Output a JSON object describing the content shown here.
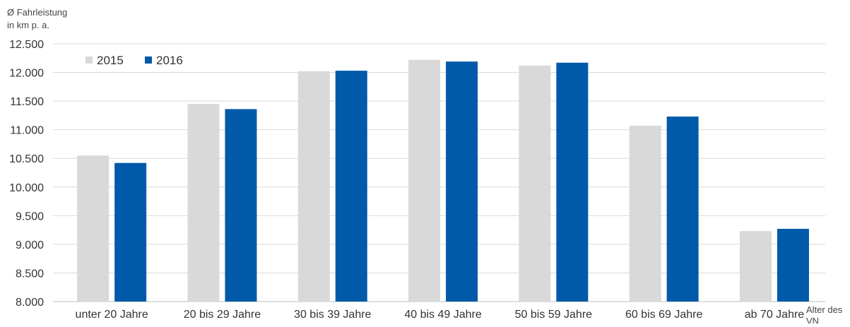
{
  "chart_data": {
    "type": "bar",
    "ylabel_lines": [
      "Ø Fahrleistung",
      "in km p. a."
    ],
    "xlabel_lines": [
      "Alter des",
      "VN"
    ],
    "categories": [
      "unter 20 Jahre",
      "20 bis 29 Jahre",
      "30 bis 39 Jahre",
      "40 bis 49 Jahre",
      "50 bis 59 Jahre",
      "60 bis 69 Jahre",
      "ab 70 Jahre"
    ],
    "series": [
      {
        "name": "2015",
        "color": "#d9d9d9",
        "values": [
          10550,
          11450,
          12020,
          12220,
          12120,
          11070,
          9230
        ]
      },
      {
        "name": "2016",
        "color": "#005aa9",
        "values": [
          10420,
          11360,
          12030,
          12190,
          12170,
          11230,
          9270
        ]
      }
    ],
    "ylim": [
      8000,
      12500
    ],
    "yticks": [
      8000,
      8500,
      9000,
      9500,
      10000,
      10500,
      11000,
      11500,
      12000,
      12500
    ],
    "ytick_labels": [
      "8.000",
      "8.500",
      "9.000",
      "9.500",
      "10.000",
      "10.500",
      "11.000",
      "11.500",
      "12.000",
      "12.500"
    ],
    "grid": true,
    "legend_position": "top-left"
  }
}
